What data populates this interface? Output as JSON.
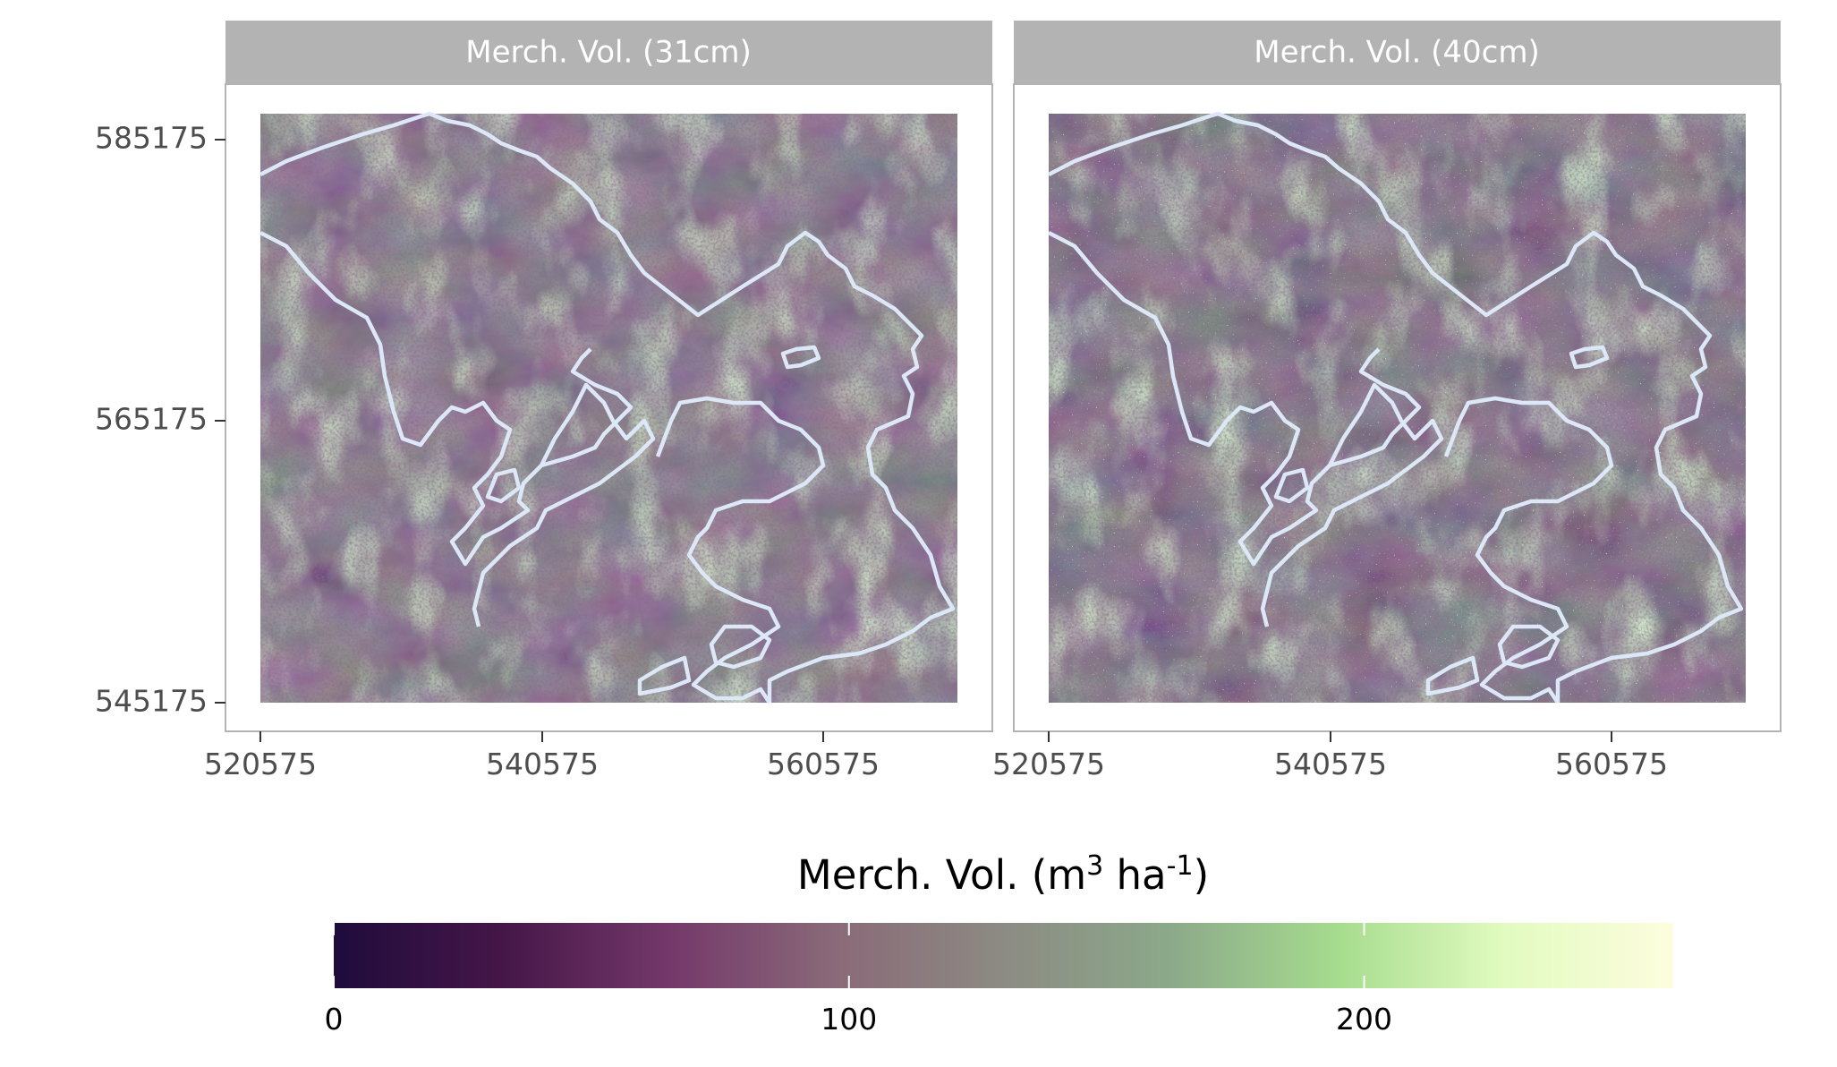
{
  "panels": [
    {
      "strip_label": "Merch. Vol. (31cm)"
    },
    {
      "strip_label": "Merch. Vol. (40cm)"
    }
  ],
  "axes": {
    "x_ticks": [
      "520575",
      "540575",
      "560575"
    ],
    "y_ticks": [
      "585175",
      "565175",
      "545175"
    ],
    "x_range": [
      518000,
      571000
    ],
    "y_range": [
      543000,
      587000
    ]
  },
  "legend": {
    "title_main": "Merch. Vol.",
    "title_unit_m": "m",
    "title_unit_m_exp": "3",
    "title_unit_ha": "ha",
    "title_unit_ha_exp": "-1",
    "ticks": [
      "0",
      "100",
      "200"
    ],
    "tick_values": [
      0,
      100,
      200
    ],
    "range": [
      0,
      260
    ],
    "colors": [
      "#1e0c3c",
      "#451648",
      "#74386a",
      "#8a6a78",
      "#8c8b83",
      "#8ca98a",
      "#a6dc8e",
      "#e2fbc0",
      "#fdfdde"
    ]
  },
  "colors": {
    "strip_bg": "#b3b3b3",
    "panel_border": "#b3b3b3",
    "boundary_line": "#dce8f8",
    "raster_base": "#6b4e6a"
  }
}
